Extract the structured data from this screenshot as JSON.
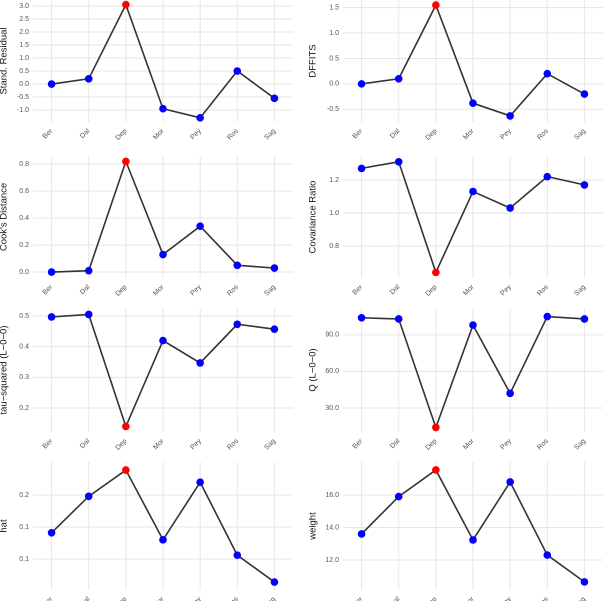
{
  "chart_data": [
    {
      "type": "line",
      "y_label": "Stand. Residual",
      "categories": [
        "Ber",
        "Dal",
        "Dep",
        "Mor",
        "Pey",
        "Ros",
        "Sag"
      ],
      "values": [
        0.0,
        0.2,
        3.05,
        -0.95,
        -1.3,
        0.5,
        -0.55
      ],
      "line_color": "#333333",
      "point_colors": [
        "#0000ff",
        "#0000ff",
        "#ff0000",
        "#0000ff",
        "#0000ff",
        "#0000ff",
        "#0000ff"
      ],
      "ylim": [
        -1.46,
        3.23
      ],
      "grid": true,
      "yticks": [
        {
          "value": -1,
          "label": "-1.0"
        },
        {
          "value": -0.5,
          "label": "-0.5"
        },
        {
          "value": 0,
          "label": "0.0"
        },
        0.5,
        {
          "value": 1,
          "label": "1.0"
        },
        1.5,
        {
          "value": 2,
          "label": "2.0"
        },
        2.5,
        {
          "value": 3,
          "label": "3.0"
        }
      ]
    },
    {
      "type": "line",
      "y_label": "DFFITS",
      "categories": [
        "Ber",
        "Dal",
        "Dep",
        "Mor",
        "Pey",
        "Ros",
        "Sag"
      ],
      "values": [
        0.0,
        0.1,
        1.55,
        -0.38,
        -0.63,
        0.2,
        -0.2
      ],
      "line_color": "#333333",
      "point_colors": [
        "#0000ff",
        "#0000ff",
        "#ff0000",
        "#0000ff",
        "#0000ff",
        "#0000ff",
        "#0000ff"
      ],
      "ylim": [
        -0.75,
        1.65
      ],
      "grid": true,
      "yticks": [
        -0.5,
        {
          "value": 0,
          "label": "0.0"
        },
        0.5,
        {
          "value": 1,
          "label": "1.0"
        },
        1.5
      ]
    },
    {
      "type": "line",
      "y_label": "Cook's Distance",
      "categories": [
        "Ber",
        "Dal",
        "Dep",
        "Mor",
        "Pey",
        "Ros",
        "Sag"
      ],
      "values": [
        0.0,
        0.01,
        0.82,
        0.13,
        0.34,
        0.05,
        0.03
      ],
      "line_color": "#333333",
      "point_colors": [
        "#0000ff",
        "#0000ff",
        "#ff0000",
        "#0000ff",
        "#0000ff",
        "#0000ff",
        "#0000ff"
      ],
      "ylim": [
        -0.044,
        0.86
      ],
      "grid": true,
      "yticks": [
        {
          "value": 0,
          "label": "0.0"
        },
        0.2,
        0.4,
        0.6,
        0.8
      ]
    },
    {
      "type": "line",
      "y_label": "Covariance Ratio",
      "categories": [
        "Ber",
        "Dal",
        "Dep",
        "Mor",
        "Pey",
        "Ros",
        "Sag"
      ],
      "values": [
        1.27,
        1.31,
        0.64,
        1.13,
        1.03,
        1.22,
        1.17
      ],
      "line_color": "#333333",
      "point_colors": [
        "#0000ff",
        "#0000ff",
        "#ff0000",
        "#0000ff",
        "#0000ff",
        "#0000ff",
        "#0000ff"
      ],
      "ylim": [
        0.606,
        1.345
      ],
      "grid": true,
      "yticks": [
        0.8,
        {
          "value": 1,
          "label": "1.0"
        },
        1.2
      ]
    },
    {
      "type": "line",
      "y_label": "tau−squared (L−0−0)",
      "categories": [
        "Ber",
        "Dal",
        "Dep",
        "Mor",
        "Pey",
        "Ros",
        "Sag"
      ],
      "values": [
        0.497,
        0.505,
        0.14,
        0.42,
        0.347,
        0.473,
        0.457
      ],
      "line_color": "#333333",
      "point_colors": [
        "#0000ff",
        "#0000ff",
        "#ff0000",
        "#0000ff",
        "#0000ff",
        "#0000ff",
        "#0000ff"
      ],
      "ylim": [
        0.122,
        0.526
      ],
      "grid": true,
      "yticks": [
        0.2,
        0.3,
        0.4,
        0.5
      ]
    },
    {
      "type": "line",
      "y_label": "Q (L−0−0)",
      "categories": [
        "Ber",
        "Dal",
        "Dep",
        "Mor",
        "Pey",
        "Ros",
        "Sag"
      ],
      "values": [
        104,
        103,
        14,
        98,
        42,
        105,
        103
      ],
      "line_color": "#333333",
      "point_colors": [
        "#0000ff",
        "#0000ff",
        "#ff0000",
        "#0000ff",
        "#0000ff",
        "#0000ff",
        "#0000ff"
      ],
      "ylim": [
        10.3,
        112
      ],
      "grid": true,
      "yticks": [
        {
          "value": 30,
          "label": "30.0"
        },
        {
          "value": 60,
          "label": "60.0"
        },
        {
          "value": 90,
          "label": "90.0"
        }
      ]
    },
    {
      "type": "line",
      "y_label": "hat",
      "categories": [
        "Ber",
        "Dal",
        "Dep",
        "Mor",
        "Pey",
        "Ros",
        "Sag"
      ],
      "values": [
        0.141,
        0.198,
        0.239,
        0.13,
        0.22,
        0.106,
        0.064
      ],
      "line_color": "#333333",
      "point_colors": [
        "#0000ff",
        "#0000ff",
        "#ff0000",
        "#0000ff",
        "#0000ff",
        "#0000ff",
        "#0000ff"
      ],
      "ylim": [
        0.0516,
        0.2516
      ],
      "grid": true,
      "yticks": [
        0.1,
        {
          "value": 0.15,
          "label": "0.1"
        },
        0.2
      ]
    },
    {
      "type": "line",
      "y_label": "weight",
      "categories": [
        "Ber",
        "Dal",
        "Dep",
        "Mor",
        "Pey",
        "Ros",
        "Sag"
      ],
      "values": [
        13.6,
        15.9,
        17.54,
        13.23,
        16.8,
        12.3,
        10.65
      ],
      "line_color": "#333333",
      "point_colors": [
        "#0000ff",
        "#0000ff",
        "#ff0000",
        "#0000ff",
        "#0000ff",
        "#0000ff",
        "#0000ff"
      ],
      "ylim": [
        10.15,
        18.03
      ],
      "grid": true,
      "yticks": [
        {
          "value": 12,
          "label": "12.0"
        },
        {
          "value": 14,
          "label": "14.0"
        },
        {
          "value": 16,
          "label": "16.0"
        }
      ]
    }
  ]
}
